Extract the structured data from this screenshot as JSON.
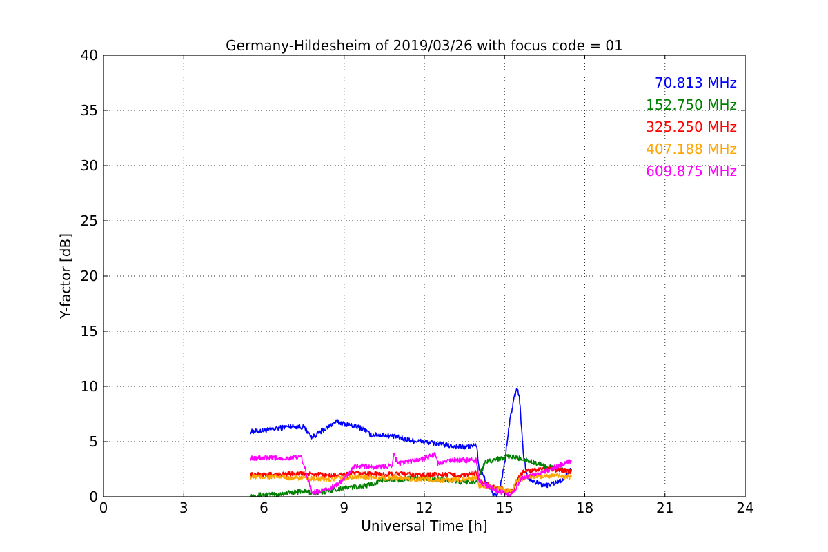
{
  "chart_data": {
    "type": "line",
    "title": "Germany-Hildesheim of 2019/03/26 with focus code = 01",
    "xlabel": "Universal Time [h]",
    "ylabel": "Y-factor [dB]",
    "xlim": [
      0,
      24
    ],
    "ylim": [
      0,
      40
    ],
    "xticks": [
      "0",
      "3",
      "6",
      "9",
      "12",
      "15",
      "18",
      "21",
      "24"
    ],
    "yticks": [
      "0",
      "5",
      "10",
      "15",
      "20",
      "25",
      "30",
      "35",
      "40"
    ],
    "grid": true,
    "legend_placement": "top-right",
    "series": [
      {
        "name": "70.813 MHz",
        "color": "#0000ff",
        "points": [
          [
            5.5,
            5.9
          ],
          [
            6.0,
            6.0
          ],
          [
            6.5,
            6.2
          ],
          [
            7.0,
            6.4
          ],
          [
            7.5,
            6.3
          ],
          [
            7.8,
            5.4
          ],
          [
            8.2,
            6.0
          ],
          [
            8.7,
            6.8
          ],
          [
            9.2,
            6.5
          ],
          [
            9.7,
            6.2
          ],
          [
            10.0,
            5.6
          ],
          [
            10.5,
            5.6
          ],
          [
            11.0,
            5.4
          ],
          [
            11.5,
            5.1
          ],
          [
            12.0,
            5.0
          ],
          [
            12.5,
            4.8
          ],
          [
            13.0,
            4.6
          ],
          [
            13.5,
            4.5
          ],
          [
            13.95,
            4.7
          ],
          [
            14.05,
            2.5
          ],
          [
            14.3,
            1.5
          ],
          [
            14.6,
            0.1
          ],
          [
            14.8,
            0.4
          ],
          [
            15.0,
            3.0
          ],
          [
            15.2,
            7.0
          ],
          [
            15.35,
            8.8
          ],
          [
            15.45,
            9.8
          ],
          [
            15.55,
            9.2
          ],
          [
            15.7,
            4.0
          ],
          [
            15.85,
            1.8
          ],
          [
            16.2,
            1.3
          ],
          [
            16.5,
            1.0
          ],
          [
            16.8,
            1.2
          ],
          [
            17.2,
            1.6
          ],
          [
            17.5,
            2.5
          ]
        ]
      },
      {
        "name": "152.750 MHz",
        "color": "#008000",
        "points": [
          [
            5.5,
            0.1
          ],
          [
            6.0,
            0.2
          ],
          [
            6.5,
            0.2
          ],
          [
            7.0,
            0.4
          ],
          [
            7.5,
            0.5
          ],
          [
            8.0,
            0.3
          ],
          [
            8.5,
            0.6
          ],
          [
            9.0,
            0.8
          ],
          [
            9.5,
            0.9
          ],
          [
            10.0,
            1.1
          ],
          [
            10.5,
            1.6
          ],
          [
            11.0,
            1.5
          ],
          [
            11.5,
            1.7
          ],
          [
            12.0,
            1.7
          ],
          [
            12.5,
            1.6
          ],
          [
            13.0,
            1.5
          ],
          [
            13.5,
            1.3
          ],
          [
            13.95,
            1.4
          ],
          [
            14.1,
            2.2
          ],
          [
            14.3,
            3.2
          ],
          [
            14.7,
            3.4
          ],
          [
            15.0,
            3.6
          ],
          [
            15.3,
            3.6
          ],
          [
            15.7,
            3.4
          ],
          [
            16.0,
            3.2
          ],
          [
            16.5,
            2.8
          ],
          [
            17.0,
            2.5
          ],
          [
            17.5,
            2.3
          ]
        ]
      },
      {
        "name": "325.250 MHz",
        "color": "#ff0000",
        "points": [
          [
            5.5,
            2.0
          ],
          [
            6.0,
            2.0
          ],
          [
            6.5,
            2.0
          ],
          [
            7.0,
            2.1
          ],
          [
            7.5,
            2.1
          ],
          [
            8.0,
            2.0
          ],
          [
            8.5,
            1.9
          ],
          [
            9.0,
            2.0
          ],
          [
            9.5,
            2.1
          ],
          [
            10.0,
            2.1
          ],
          [
            10.5,
            2.0
          ],
          [
            11.0,
            2.1
          ],
          [
            11.5,
            2.0
          ],
          [
            12.0,
            2.0
          ],
          [
            12.5,
            2.0
          ],
          [
            13.0,
            2.0
          ],
          [
            13.5,
            1.9
          ],
          [
            13.95,
            2.2
          ],
          [
            14.05,
            1.5
          ],
          [
            14.5,
            0.9
          ],
          [
            15.0,
            0.7
          ],
          [
            15.3,
            0.5
          ],
          [
            15.5,
            1.6
          ],
          [
            15.7,
            2.3
          ],
          [
            16.2,
            2.4
          ],
          [
            16.7,
            2.5
          ],
          [
            17.2,
            2.4
          ],
          [
            17.5,
            2.3
          ]
        ]
      },
      {
        "name": "407.188 MHz",
        "color": "#ffa500",
        "points": [
          [
            5.5,
            1.8
          ],
          [
            6.0,
            1.8
          ],
          [
            6.5,
            1.8
          ],
          [
            7.0,
            1.7
          ],
          [
            7.5,
            1.7
          ],
          [
            8.0,
            1.6
          ],
          [
            8.5,
            1.6
          ],
          [
            9.0,
            1.7
          ],
          [
            9.5,
            1.8
          ],
          [
            10.0,
            1.8
          ],
          [
            10.5,
            1.7
          ],
          [
            11.0,
            1.7
          ],
          [
            11.5,
            1.6
          ],
          [
            12.0,
            1.6
          ],
          [
            12.5,
            1.5
          ],
          [
            13.0,
            1.5
          ],
          [
            13.5,
            1.6
          ],
          [
            13.95,
            1.7
          ],
          [
            14.05,
            1.0
          ],
          [
            14.5,
            0.9
          ],
          [
            15.0,
            0.6
          ],
          [
            15.3,
            0.5
          ],
          [
            15.4,
            1.4
          ],
          [
            15.8,
            1.8
          ],
          [
            16.5,
            1.9
          ],
          [
            17.0,
            1.9
          ],
          [
            17.5,
            1.8
          ]
        ]
      },
      {
        "name": "609.875 MHz",
        "color": "#ff00ff",
        "points": [
          [
            5.5,
            3.5
          ],
          [
            6.0,
            3.5
          ],
          [
            6.5,
            3.5
          ],
          [
            7.0,
            3.5
          ],
          [
            7.4,
            3.6
          ],
          [
            7.6,
            2.0
          ],
          [
            7.8,
            0.4
          ],
          [
            8.1,
            0.5
          ],
          [
            8.5,
            0.8
          ],
          [
            8.8,
            1.2
          ],
          [
            9.0,
            1.6
          ],
          [
            9.4,
            2.8
          ],
          [
            9.7,
            2.8
          ],
          [
            10.0,
            2.7
          ],
          [
            10.5,
            2.7
          ],
          [
            10.8,
            2.9
          ],
          [
            10.85,
            4.0
          ],
          [
            11.0,
            3.0
          ],
          [
            11.5,
            3.2
          ],
          [
            12.0,
            3.5
          ],
          [
            12.4,
            3.8
          ],
          [
            12.5,
            3.0
          ],
          [
            13.0,
            3.3
          ],
          [
            13.5,
            3.3
          ],
          [
            13.95,
            3.3
          ],
          [
            14.05,
            1.4
          ],
          [
            14.5,
            0.8
          ],
          [
            15.0,
            0.3
          ],
          [
            15.2,
            0.1
          ],
          [
            15.4,
            0.6
          ],
          [
            15.6,
            1.6
          ],
          [
            16.0,
            2.0
          ],
          [
            16.5,
            2.3
          ],
          [
            17.0,
            2.8
          ],
          [
            17.5,
            3.3
          ]
        ]
      }
    ]
  }
}
